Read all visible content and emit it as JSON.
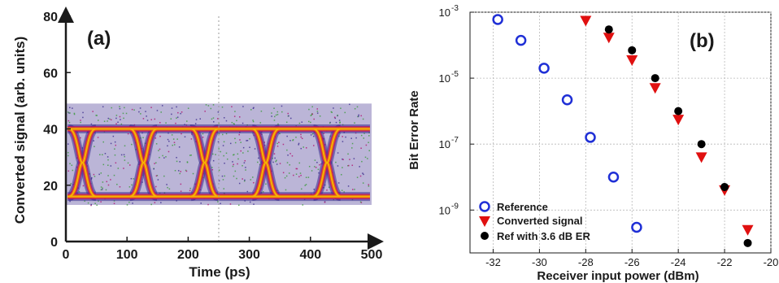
{
  "chart_data": [
    {
      "type": "eye-diagram",
      "panel_label": "(a)",
      "xlabel": "Time (ps)",
      "ylabel": "Converted signal (arb. units)",
      "xlim": [
        0,
        500
      ],
      "ylim": [
        0,
        80
      ],
      "x_ticks": [
        "0",
        "100",
        "200",
        "300",
        "400",
        "500"
      ],
      "y_ticks": [
        "0",
        "20",
        "40",
        "60",
        "80"
      ],
      "bit_period_ps": 100,
      "levels": {
        "low": 16,
        "high": 40,
        "noise_floor": 13,
        "noise_ceiling": 49
      },
      "crossing_times_ps": [
        27,
        127,
        227,
        327,
        427
      ],
      "colors": {
        "core": "#f6b400",
        "mid": "#e8561e",
        "outer": "#b0106e",
        "fringe": "#3b2a8c",
        "speckle": "#3a9a3a"
      }
    },
    {
      "type": "scatter",
      "panel_label": "(b)",
      "xlabel": "Receiver input power (dBm)",
      "ylabel": "Bit Error Rate",
      "x_ticks": [
        "-32",
        "-30",
        "-28",
        "-26",
        "-24",
        "-22",
        "-20"
      ],
      "y_ticks": [
        "10",
        "10",
        "10",
        "10"
      ],
      "y_tick_exponents": [
        "-3",
        "-5",
        "-7",
        "-9"
      ],
      "xlim": [
        -33,
        -20
      ],
      "ylim_log10": [
        -10.3,
        -3
      ],
      "scale_y": "log",
      "grid": true,
      "legend_position": "bottom-left",
      "series": [
        {
          "name": "Reference",
          "marker": "circle-open",
          "color": "#1f2fd6",
          "x": [
            -31.8,
            -30.8,
            -29.8,
            -28.8,
            -27.8,
            -26.8,
            -25.8
          ],
          "y": [
            0.0006,
            0.00014,
            2e-05,
            2.2e-06,
            1.6e-07,
            1e-08,
            3e-10
          ]
        },
        {
          "name": "Converted signal",
          "marker": "triangle-down",
          "color": "#e01010",
          "x": [
            -28,
            -27,
            -26,
            -25,
            -24,
            -23,
            -22,
            -21
          ],
          "y": [
            0.00055,
            0.00017,
            3.5e-05,
            5e-06,
            5.5e-07,
            4e-08,
            4e-09,
            2.5e-10
          ]
        },
        {
          "name": "Ref with 3.6 dB ER",
          "marker": "circle-filled",
          "color": "#000000",
          "x": [
            -27,
            -26,
            -25,
            -24,
            -23,
            -22,
            -21
          ],
          "y": [
            0.0003,
            7e-05,
            1e-05,
            1e-06,
            1e-07,
            5e-09,
            1e-10
          ]
        }
      ]
    }
  ]
}
